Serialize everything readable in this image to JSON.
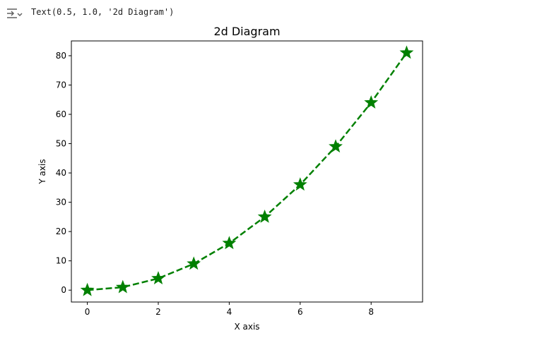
{
  "output": {
    "toggle_icon": "output-collapse-icon",
    "text": "Text(0.5, 1.0, '2d Diagram')"
  },
  "chart_data": {
    "type": "line",
    "title": "2d Diagram",
    "xlabel": "X axis",
    "ylabel": "Y axis",
    "x": [
      0,
      1,
      2,
      3,
      4,
      5,
      6,
      7,
      8,
      9
    ],
    "series": [
      {
        "values": [
          0,
          1,
          4,
          9,
          16,
          25,
          36,
          49,
          64,
          81
        ],
        "color": "#008000",
        "line_style": "dashed",
        "marker": "star"
      }
    ],
    "xlim": [
      -0.45,
      9.45
    ],
    "ylim": [
      -4.05,
      85.05
    ],
    "xticks": [
      0,
      2,
      4,
      6,
      8
    ],
    "yticks": [
      0,
      10,
      20,
      30,
      40,
      50,
      60,
      70,
      80
    ],
    "grid": false,
    "legend": "none"
  }
}
